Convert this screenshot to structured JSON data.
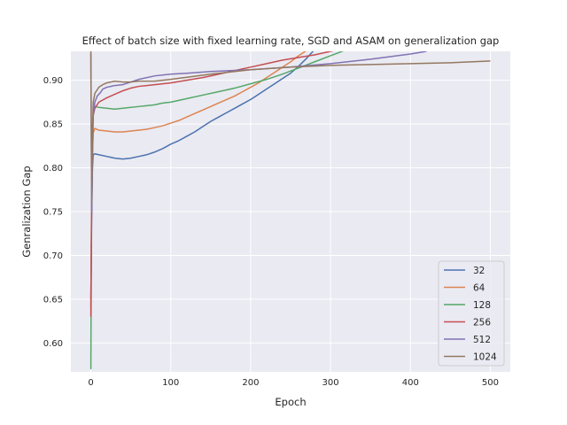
{
  "chart_data": {
    "type": "line",
    "title": "Effect of batch size with fixed learning rate, SGD and ASAM on generalization gap",
    "xlabel": "Epoch",
    "ylabel": "Genralization Gap",
    "xlim": [
      -25,
      525
    ],
    "ylim": [
      0.567,
      0.933
    ],
    "xticks": [
      0,
      100,
      200,
      300,
      400,
      500
    ],
    "yticks": [
      0.6,
      0.65,
      0.7,
      0.75,
      0.8,
      0.85,
      0.9
    ],
    "grid": true,
    "legend_position": "lower-right",
    "series": [
      {
        "name": "32",
        "color": "#4c72b0",
        "x": [
          0,
          1,
          2,
          3,
          5,
          10,
          20,
          30,
          40,
          50,
          60,
          70,
          80,
          90,
          100,
          110,
          120,
          130,
          140,
          150,
          160,
          170,
          180,
          190,
          200,
          210,
          220,
          230,
          240,
          250,
          260,
          270,
          280
        ],
        "y": [
          0.65,
          0.74,
          0.8,
          0.815,
          0.816,
          0.815,
          0.813,
          0.811,
          0.81,
          0.811,
          0.813,
          0.815,
          0.818,
          0.822,
          0.827,
          0.831,
          0.836,
          0.841,
          0.847,
          0.853,
          0.858,
          0.863,
          0.868,
          0.873,
          0.878,
          0.884,
          0.89,
          0.896,
          0.902,
          0.908,
          0.916,
          0.925,
          0.935
        ]
      },
      {
        "name": "64",
        "color": "#dd8452",
        "x": [
          0,
          1,
          2,
          3,
          5,
          10,
          20,
          30,
          40,
          50,
          60,
          70,
          80,
          90,
          100,
          110,
          120,
          130,
          140,
          150,
          160,
          170,
          180,
          190,
          200,
          210,
          220,
          230,
          240,
          250,
          260,
          270
        ],
        "y": [
          0.64,
          0.78,
          0.82,
          0.84,
          0.845,
          0.843,
          0.842,
          0.841,
          0.841,
          0.842,
          0.843,
          0.844,
          0.846,
          0.848,
          0.851,
          0.854,
          0.858,
          0.862,
          0.866,
          0.87,
          0.874,
          0.878,
          0.882,
          0.887,
          0.892,
          0.897,
          0.903,
          0.909,
          0.915,
          0.921,
          0.928,
          0.934
        ]
      },
      {
        "name": "128",
        "color": "#55a868",
        "x": [
          0,
          1,
          2,
          3,
          5,
          10,
          20,
          30,
          40,
          50,
          60,
          70,
          80,
          90,
          100,
          120,
          140,
          160,
          180,
          200,
          220,
          240,
          260,
          280,
          300,
          320,
          330
        ],
        "y": [
          0.57,
          0.79,
          0.84,
          0.86,
          0.87,
          0.869,
          0.868,
          0.867,
          0.868,
          0.869,
          0.87,
          0.871,
          0.872,
          0.874,
          0.875,
          0.879,
          0.883,
          0.887,
          0.891,
          0.896,
          0.901,
          0.907,
          0.914,
          0.921,
          0.928,
          0.935,
          0.938
        ]
      },
      {
        "name": "256",
        "color": "#c44e52",
        "x": [
          0,
          1,
          2,
          3,
          5,
          10,
          20,
          30,
          40,
          50,
          60,
          70,
          80,
          90,
          100,
          120,
          140,
          160,
          180,
          200,
          220,
          240,
          260,
          280,
          300,
          310
        ],
        "y": [
          0.63,
          0.76,
          0.84,
          0.86,
          0.868,
          0.875,
          0.88,
          0.884,
          0.888,
          0.891,
          0.893,
          0.894,
          0.895,
          0.896,
          0.897,
          0.9,
          0.903,
          0.907,
          0.911,
          0.915,
          0.919,
          0.923,
          0.926,
          0.929,
          0.933,
          0.935
        ]
      },
      {
        "name": "512",
        "color": "#8172b3",
        "x": [
          0,
          1,
          2,
          3,
          5,
          8,
          12,
          15,
          20,
          30,
          40,
          50,
          60,
          80,
          100,
          120,
          150,
          200,
          250,
          300,
          350,
          400,
          420
        ],
        "y": [
          0.93,
          0.75,
          0.8,
          0.86,
          0.875,
          0.882,
          0.886,
          0.89,
          0.892,
          0.894,
          0.895,
          0.898,
          0.901,
          0.905,
          0.907,
          0.908,
          0.91,
          0.912,
          0.915,
          0.919,
          0.924,
          0.93,
          0.933
        ]
      },
      {
        "name": "1024",
        "color": "#937860",
        "x": [
          0,
          1,
          2,
          3,
          5,
          10,
          15,
          20,
          30,
          40,
          50,
          60,
          80,
          100,
          150,
          200,
          250,
          300,
          350,
          400,
          450,
          500
        ],
        "y": [
          0.935,
          0.76,
          0.84,
          0.875,
          0.885,
          0.892,
          0.895,
          0.897,
          0.899,
          0.898,
          0.898,
          0.899,
          0.899,
          0.901,
          0.907,
          0.912,
          0.915,
          0.917,
          0.918,
          0.919,
          0.92,
          0.922
        ]
      }
    ]
  }
}
